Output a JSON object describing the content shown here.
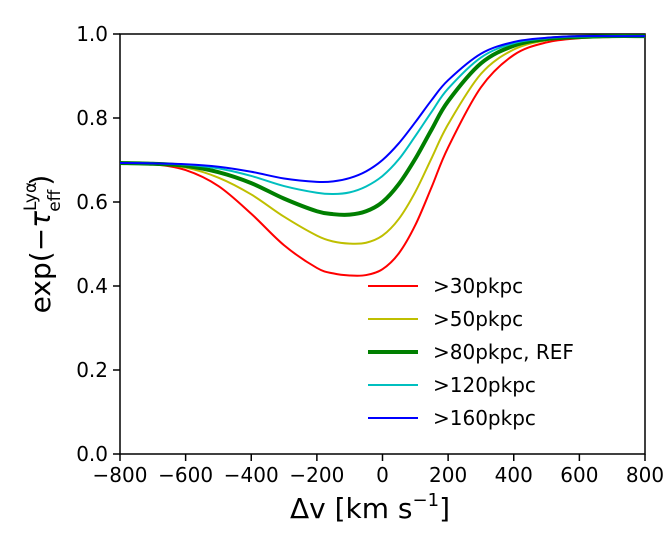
{
  "chart_data": {
    "type": "line",
    "title": "",
    "xlabel": "Δv [km s⁻¹]",
    "xlabel_main": "Δv [km s",
    "xlabel_exp": "−1",
    "xlabel_close": "]",
    "ylabel": "exp(−τ_eff^Lyα)",
    "ylabel_prefix": "exp(−",
    "ylabel_tau": "τ",
    "ylabel_sup": "Lyα",
    "ylabel_sub": "eff",
    "ylabel_suffix": ")",
    "xlim": [
      -800,
      800
    ],
    "ylim": [
      0.0,
      1.0
    ],
    "xticks": [
      -800,
      -600,
      -400,
      -200,
      0,
      200,
      400,
      600,
      800
    ],
    "xtick_labels": [
      "−800",
      "−600",
      "−400",
      "−200",
      "0",
      "200",
      "400",
      "600",
      "800"
    ],
    "yticks": [
      0.0,
      0.2,
      0.4,
      0.6,
      0.8,
      1.0
    ],
    "ytick_labels": [
      "0.0",
      "0.2",
      "0.4",
      "0.6",
      "0.8",
      "1.0"
    ],
    "grid": false,
    "legend_position": "lower-right",
    "x": [
      -800,
      -700,
      -600,
      -500,
      -400,
      -300,
      -200,
      -150,
      -100,
      -50,
      0,
      50,
      100,
      150,
      200,
      300,
      400,
      500,
      600,
      700,
      800
    ],
    "series": [
      {
        "name": ">30pkpc",
        "color": "#ff0000",
        "width": "normal",
        "values": [
          0.693,
          0.69,
          0.676,
          0.638,
          0.572,
          0.497,
          0.443,
          0.43,
          0.425,
          0.426,
          0.44,
          0.478,
          0.545,
          0.636,
          0.73,
          0.873,
          0.95,
          0.98,
          0.99,
          0.993,
          0.995
        ]
      },
      {
        "name": ">50pkpc",
        "color": "#bfbf00",
        "width": "normal",
        "values": [
          0.693,
          0.691,
          0.682,
          0.658,
          0.618,
          0.565,
          0.52,
          0.506,
          0.501,
          0.503,
          0.52,
          0.56,
          0.624,
          0.705,
          0.785,
          0.905,
          0.963,
          0.985,
          0.992,
          0.994,
          0.995
        ]
      },
      {
        "name": ">80pkpc, REF",
        "color": "#007f00",
        "width": "thick",
        "values": [
          0.693,
          0.691,
          0.686,
          0.671,
          0.645,
          0.608,
          0.578,
          0.571,
          0.57,
          0.578,
          0.6,
          0.643,
          0.703,
          0.773,
          0.84,
          0.93,
          0.972,
          0.988,
          0.993,
          0.995,
          0.995
        ]
      },
      {
        "name": ">120pkpc",
        "color": "#00bfbf",
        "width": "normal",
        "values": [
          0.693,
          0.692,
          0.689,
          0.68,
          0.662,
          0.638,
          0.622,
          0.619,
          0.623,
          0.637,
          0.662,
          0.702,
          0.757,
          0.815,
          0.87,
          0.944,
          0.978,
          0.99,
          0.994,
          0.995,
          0.995
        ]
      },
      {
        "name": ">160pkpc",
        "color": "#0000ff",
        "width": "normal",
        "values": [
          0.693,
          0.692,
          0.69,
          0.684,
          0.672,
          0.656,
          0.648,
          0.649,
          0.657,
          0.673,
          0.7,
          0.74,
          0.79,
          0.843,
          0.89,
          0.953,
          0.981,
          0.991,
          0.995,
          0.995,
          0.995
        ]
      }
    ]
  }
}
